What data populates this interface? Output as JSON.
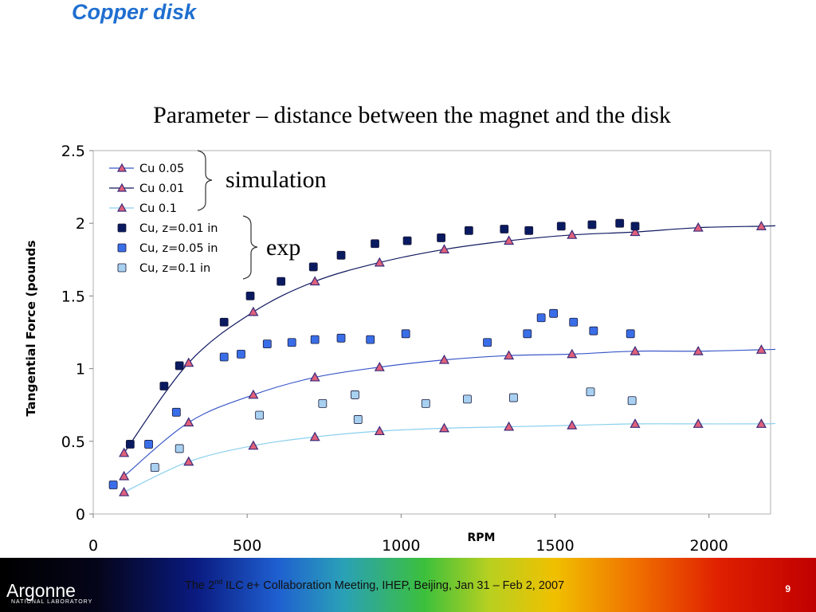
{
  "slide": {
    "title": "Copper disk",
    "subtitle": "Parameter – distance between the magnet and the disk"
  },
  "footer": {
    "logo_text": "Argonne",
    "logo_subtext": "NATIONAL LABORATORY",
    "meeting_prefix": "The 2",
    "meeting_sup": "nd",
    "meeting_suffix": " ILC e+ Collaboration Meeting, IHEP, Beijing, Jan 31 – Feb 2, 2007",
    "page_number": "9"
  },
  "colors": {
    "title": "#1f6fd0",
    "sim_triangle_fill": "#e0607a",
    "sim_triangle_stroke": "#3a2a7a",
    "exp_001": "#0a1a60",
    "exp_005": "#3a6ee8",
    "exp_01": "#a8d0f0"
  },
  "chart_data": {
    "type": "scatter",
    "xlabel": "RPM",
    "ylabel": "Tangential Force (pounds",
    "xlim": [
      0,
      2200
    ],
    "ylim": [
      0,
      2.5
    ],
    "x_ticks": [
      "0",
      "500",
      "1000",
      "1500",
      "2000"
    ],
    "y_ticks": [
      "0",
      "0.5",
      "1",
      "1.5",
      "2",
      "2.5"
    ],
    "grid": false,
    "legend_position": "top-left",
    "annotations": [
      "simulation",
      "exp"
    ],
    "series": [
      {
        "name": "Cu 0.05",
        "marker": "triangle",
        "line_color": "#3a58c8",
        "x": [
          100,
          310,
          520,
          720,
          930,
          1140,
          1350,
          1555,
          1760,
          1965,
          2170
        ],
        "y": [
          0.26,
          0.63,
          0.82,
          0.94,
          1.01,
          1.06,
          1.09,
          1.1,
          1.12,
          1.12,
          1.13
        ]
      },
      {
        "name": "Cu 0.01",
        "marker": "triangle",
        "line_color": "#101860",
        "x": [
          100,
          310,
          520,
          720,
          930,
          1140,
          1350,
          1555,
          1760,
          1965,
          2170
        ],
        "y": [
          0.42,
          1.04,
          1.39,
          1.6,
          1.73,
          1.82,
          1.88,
          1.92,
          1.94,
          1.97,
          1.98
        ]
      },
      {
        "name": "Cu 0.1",
        "marker": "triangle",
        "line_color": "#8ad0ee",
        "x": [
          100,
          310,
          520,
          720,
          930,
          1140,
          1350,
          1555,
          1760,
          1965,
          2170
        ],
        "y": [
          0.15,
          0.36,
          0.47,
          0.53,
          0.57,
          0.59,
          0.6,
          0.61,
          0.62,
          0.62,
          0.62
        ]
      },
      {
        "name": "Cu, z=0.01 in",
        "marker": "square",
        "color": "#0a1a60",
        "x": [
          120,
          230,
          280,
          425,
          510,
          610,
          715,
          805,
          915,
          1020,
          1130,
          1220,
          1335,
          1415,
          1520,
          1620,
          1710,
          1760
        ],
        "y": [
          0.48,
          0.88,
          1.02,
          1.32,
          1.5,
          1.6,
          1.7,
          1.78,
          1.86,
          1.88,
          1.9,
          1.95,
          1.96,
          1.95,
          1.98,
          1.99,
          2.0,
          1.98
        ]
      },
      {
        "name": "Cu, z=0.05 in",
        "marker": "square",
        "color": "#3a6ee8",
        "x": [
          65,
          180,
          270,
          425,
          480,
          565,
          645,
          720,
          805,
          900,
          1015,
          1280,
          1410,
          1455,
          1495,
          1560,
          1625,
          1745
        ],
        "y": [
          0.2,
          0.48,
          0.7,
          1.08,
          1.1,
          1.17,
          1.18,
          1.2,
          1.21,
          1.2,
          1.24,
          1.18,
          1.24,
          1.35,
          1.38,
          1.32,
          1.26,
          1.24
        ]
      },
      {
        "name": "Cu, z=0.1 in",
        "marker": "square",
        "color": "#a8d0f0",
        "x": [
          200,
          280,
          540,
          745,
          850,
          860,
          1080,
          1215,
          1365,
          1615,
          1750
        ],
        "y": [
          0.32,
          0.45,
          0.68,
          0.76,
          0.82,
          0.65,
          0.76,
          0.79,
          0.8,
          0.84,
          0.78
        ]
      }
    ]
  }
}
